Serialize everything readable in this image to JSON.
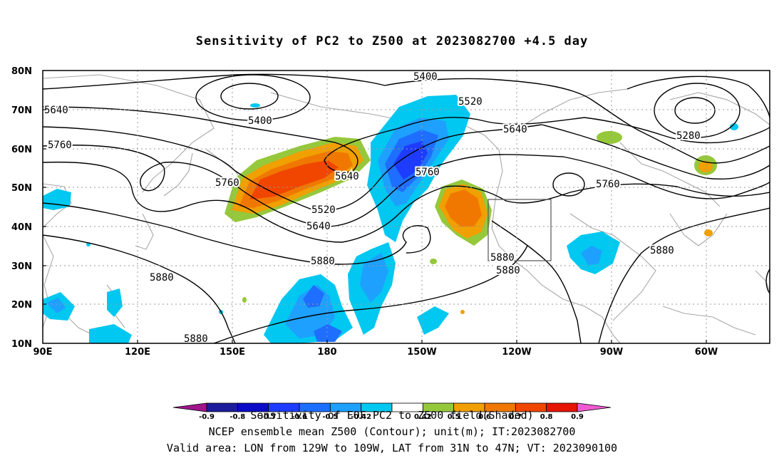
{
  "title": "Sensitivity of PC2 to Z500 at 2023082700 +4.5 day",
  "lat_labels": [
    "80N",
    "70N",
    "60N",
    "50N",
    "40N",
    "30N",
    "20N",
    "10N"
  ],
  "lon_labels": [
    "90E",
    "120E",
    "150E",
    "180",
    "150W",
    "120W",
    "90W",
    "60W"
  ],
  "contour_labels": [
    "5400",
    "5520",
    "5640",
    "5640",
    "5760",
    "5400",
    "5760",
    "5520",
    "5640",
    "5880",
    "5760",
    "5640",
    "5280",
    "5760",
    "5880",
    "5880",
    "5880",
    "5880",
    "5880"
  ],
  "colorbar": {
    "ticks": [
      "-0.9",
      "-0.8",
      "-0.7",
      "-0.6",
      "-0.5",
      "-0.42",
      "0.42",
      "0.5",
      "0.6",
      "0.7",
      "0.8",
      "0.9"
    ],
    "colors": [
      "#a0148c",
      "#1c1c9c",
      "#0a0ac8",
      "#1e3cff",
      "#1e6eff",
      "#1ea0ff",
      "#00c8f0",
      "#ffffff",
      "#96c83c",
      "#f0a000",
      "#f07800",
      "#f04600",
      "#e61400",
      "#f05ad2"
    ],
    "label": "Sensitivity of EOF PC2 to Z500 field(Shaded)"
  },
  "footer": {
    "line1": "NCEP ensemble mean Z500 (Contour); unit(m); IT:2023082700",
    "line2": "Valid area: LON from 129W to 109W, LAT from 31N to 47N; VT: 2023090100"
  }
}
